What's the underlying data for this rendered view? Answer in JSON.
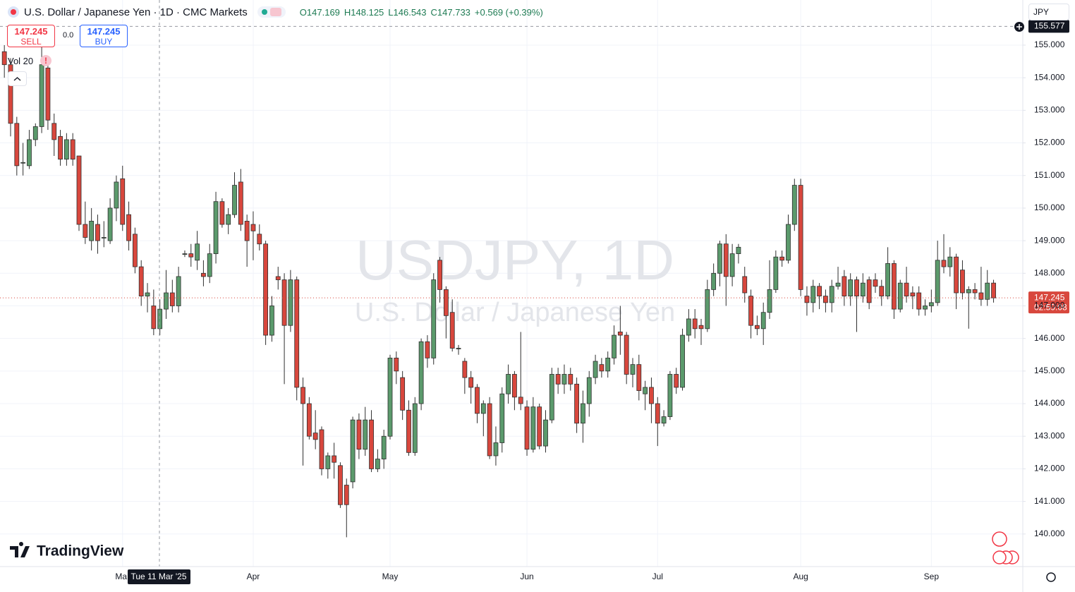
{
  "header": {
    "title": "U.S. Dollar / Japanese Yen · 1D · CMC Markets",
    "open": "O147.169",
    "high": "H148.125",
    "low": "L146.543",
    "close": "C147.733",
    "change": "+0.569 (+0.39%)"
  },
  "trade": {
    "sell_price": "147.245",
    "sell": "SELL",
    "spread": "0.0",
    "buy_price": "147.245",
    "buy": "BUY"
  },
  "volume_label": "Vol 20",
  "currency": "JPY",
  "watermark": {
    "symbol": "USDJPY, 1D",
    "name": "U.S. Dollar / Japanese Yen"
  },
  "logo": "TradingView",
  "crosshair": {
    "price": 155.577,
    "date": "Tue 11 Mar '25"
  },
  "chart_data": {
    "type": "candlestick",
    "open": [
      154.8,
      154.4,
      152.6,
      151.4,
      151.3,
      152.1,
      152.5,
      154.3,
      152.6,
      152.2,
      151.5,
      152.1,
      151.6,
      149.5,
      149.0,
      149.5,
      149.1,
      149.0,
      150.0,
      150.9,
      149.8,
      149.2,
      148.2,
      147.3,
      147.0,
      146.3,
      146.9,
      147.4,
      147.0,
      148.6,
      148.6,
      148.4,
      148.0,
      147.9,
      148.6,
      150.2,
      149.5,
      149.8,
      150.8,
      149.6,
      149.5,
      149.2,
      148.9,
      146.1,
      147.9,
      147.8,
      146.4,
      147.8,
      144.5,
      144.0,
      143.1,
      143.2,
      142.0,
      142.4,
      142.1,
      141.5,
      141.6,
      143.5,
      142.6,
      143.5,
      142.0,
      142.3,
      143.0,
      145.4,
      144.8,
      143.8,
      142.5,
      144.0,
      145.9,
      145.4,
      148.4,
      147.5,
      146.8,
      145.7,
      145.3,
      144.8,
      144.5,
      143.7,
      144.0,
      142.4,
      142.8,
      144.3,
      144.9,
      144.2,
      143.9,
      142.6,
      143.9,
      142.7,
      143.5,
      144.9,
      144.6,
      144.9,
      144.6,
      143.4,
      144.0,
      144.8,
      145.2,
      145.0,
      145.4,
      146.2,
      146.1,
      144.9,
      145.2,
      144.3,
      144.5,
      144.0,
      143.4,
      143.6,
      144.9,
      144.5,
      146.1,
      146.6,
      146.4,
      146.3,
      147.5,
      148.0,
      148.9,
      147.9,
      148.6,
      147.9,
      147.3,
      146.4,
      146.3,
      146.8,
      147.5,
      148.5,
      148.4,
      149.5,
      150.7,
      147.3,
      147.1,
      147.6,
      147.3,
      147.1,
      147.6,
      147.9,
      147.3,
      147.8,
      147.3,
      147.8,
      147.8,
      147.6,
      147.3,
      148.3,
      146.9,
      147.7,
      147.4,
      147.4,
      146.9,
      147.0,
      147.1,
      148.4,
      148.2,
      148.5,
      148.1,
      147.4,
      147.5,
      147.4,
      147.2,
      147.7
    ],
    "high": [
      155.0,
      154.6,
      152.8,
      152.0,
      152.4,
      152.6,
      155.1,
      154.5,
      152.9,
      152.4,
      152.3,
      152.3,
      151.6,
      150.2,
      150.0,
      149.8,
      149.6,
      150.3,
      151.0,
      151.3,
      150.2,
      149.4,
      148.4,
      147.7,
      147.5,
      147.2,
      148.1,
      147.8,
      148.2,
      148.7,
      148.9,
      149.3,
      148.4,
      148.9,
      150.5,
      150.3,
      150.0,
      151.1,
      151.2,
      149.8,
      149.9,
      149.5,
      149.0,
      147.3,
      148.2,
      148.0,
      148.1,
      147.9,
      144.8,
      144.2,
      143.8,
      143.3,
      142.5,
      142.8,
      142.2,
      141.7,
      143.6,
      143.7,
      143.9,
      143.8,
      142.6,
      143.2,
      145.5,
      145.6,
      145.0,
      144.1,
      144.2,
      146.0,
      146.1,
      148.0,
      148.5,
      147.6,
      147.2,
      145.8,
      145.4,
      145.0,
      144.6,
      144.1,
      144.2,
      143.3,
      144.5,
      145.2,
      145.0,
      146.2,
      144.1,
      144.2,
      144.0,
      143.8,
      145.1,
      145.1,
      145.2,
      145.1,
      144.8,
      144.4,
      145.0,
      145.5,
      145.4,
      145.6,
      146.4,
      147.0,
      146.2,
      145.4,
      145.5,
      144.7,
      144.8,
      144.2,
      143.8,
      145.0,
      145.1,
      146.3,
      146.9,
      146.9,
      146.6,
      147.8,
      148.3,
      149.0,
      149.2,
      148.9,
      148.9,
      148.2,
      147.5,
      146.7,
      147.1,
      148.4,
      148.7,
      148.7,
      149.8,
      150.9,
      150.9,
      147.6,
      147.8,
      147.7,
      147.5,
      147.8,
      148.2,
      148.1,
      148.0,
      147.9,
      148.0,
      147.9,
      148.0,
      147.8,
      148.8,
      148.4,
      147.8,
      148.2,
      147.6,
      147.6,
      147.2,
      147.5,
      149.0,
      149.2,
      148.8,
      148.6,
      148.4,
      147.6,
      147.7,
      148.2,
      148.1,
      147.8
    ],
    "low": [
      154.0,
      152.2,
      151.0,
      151.0,
      151.2,
      151.9,
      152.3,
      152.4,
      151.6,
      151.3,
      151.3,
      151.3,
      149.3,
      148.9,
      148.7,
      148.6,
      148.8,
      148.9,
      149.6,
      149.3,
      148.7,
      148.0,
      147.0,
      146.8,
      146.1,
      146.1,
      146.6,
      146.8,
      146.8,
      148.5,
      148.2,
      148.1,
      147.6,
      147.7,
      148.3,
      149.4,
      149.2,
      149.7,
      149.3,
      148.2,
      148.4,
      148.7,
      145.8,
      145.9,
      147.5,
      144.6,
      146.2,
      144.1,
      142.1,
      142.9,
      142.6,
      141.8,
      141.7,
      141.7,
      140.8,
      139.9,
      141.4,
      142.3,
      142.4,
      141.9,
      141.9,
      142.0,
      142.9,
      144.6,
      143.5,
      142.4,
      142.4,
      143.8,
      145.1,
      145.2,
      147.1,
      146.0,
      145.6,
      145.5,
      144.3,
      144.0,
      143.4,
      143.0,
      142.3,
      142.1,
      142.5,
      144.0,
      143.8,
      143.8,
      142.4,
      142.5,
      142.6,
      142.5,
      143.4,
      144.3,
      144.3,
      144.4,
      143.1,
      142.8,
      143.6,
      144.6,
      144.8,
      144.8,
      145.2,
      145.5,
      144.6,
      144.5,
      144.1,
      143.8,
      143.4,
      142.7,
      143.3,
      143.5,
      144.3,
      144.4,
      145.9,
      146.0,
      145.8,
      146.2,
      147.3,
      147.6,
      147.0,
      147.6,
      148.3,
      147.1,
      146.0,
      146.1,
      145.8,
      146.6,
      147.4,
      148.2,
      148.3,
      149.3,
      147.3,
      146.7,
      146.8,
      146.9,
      146.8,
      146.8,
      147.5,
      147.0,
      147.0,
      146.2,
      147.1,
      146.9,
      147.4,
      147.0,
      147.2,
      146.6,
      146.8,
      147.1,
      146.9,
      146.7,
      146.7,
      146.8,
      147.0,
      148.0,
      147.9,
      146.9,
      147.2,
      146.3,
      147.2,
      147.0,
      147.0,
      147.1
    ],
    "close": [
      154.4,
      152.6,
      151.3,
      151.4,
      152.1,
      152.5,
      154.4,
      152.7,
      152.1,
      151.5,
      152.1,
      151.5,
      149.5,
      149.1,
      149.6,
      149.0,
      149.1,
      150.0,
      150.8,
      149.5,
      149.0,
      148.2,
      147.3,
      147.4,
      146.3,
      146.9,
      147.4,
      147.0,
      147.9,
      148.6,
      148.5,
      148.9,
      147.9,
      148.6,
      150.2,
      149.5,
      149.8,
      150.7,
      149.5,
      149.0,
      149.3,
      148.9,
      146.1,
      147.0,
      147.8,
      146.4,
      147.8,
      144.5,
      144.0,
      143.0,
      142.9,
      142.0,
      142.4,
      142.2,
      140.9,
      140.9,
      143.5,
      142.6,
      143.5,
      142.0,
      142.3,
      143.0,
      145.4,
      145.0,
      143.8,
      142.5,
      144.0,
      145.9,
      145.4,
      147.8,
      147.5,
      146.7,
      145.7,
      145.7,
      144.8,
      144.5,
      143.7,
      144.0,
      142.4,
      142.8,
      144.3,
      144.9,
      144.2,
      144.0,
      142.6,
      143.9,
      142.7,
      143.5,
      144.9,
      144.6,
      144.9,
      144.6,
      143.4,
      144.0,
      144.8,
      145.3,
      145.0,
      145.4,
      146.1,
      146.1,
      144.9,
      145.2,
      144.4,
      144.5,
      144.0,
      143.4,
      143.6,
      144.9,
      144.5,
      146.1,
      146.6,
      146.3,
      146.3,
      147.5,
      148.0,
      148.9,
      147.9,
      148.6,
      148.8,
      147.4,
      146.4,
      146.3,
      146.8,
      147.5,
      148.5,
      148.4,
      149.5,
      150.7,
      147.5,
      147.1,
      147.6,
      147.3,
      147.1,
      147.6,
      147.7,
      147.3,
      147.8,
      147.3,
      147.7,
      147.1,
      147.6,
      147.3,
      148.3,
      146.9,
      147.7,
      147.3,
      147.3,
      146.9,
      147.0,
      147.1,
      148.4,
      148.2,
      148.5,
      147.4,
      147.4,
      147.5,
      147.4,
      147.2,
      147.7,
      147.245
    ],
    "xlim": [
      -0.7,
      163.7
    ],
    "xticks": [
      {
        "value": 19,
        "label": "Mar"
      },
      {
        "value": 40,
        "label": "Apr"
      },
      {
        "value": 62,
        "label": "May"
      },
      {
        "value": 84,
        "label": "Jun"
      },
      {
        "value": 105,
        "label": "Jul"
      },
      {
        "value": 128,
        "label": "Aug"
      },
      {
        "value": 149,
        "label": "Sep"
      }
    ],
    "ylim": [
      139.0,
      156.385
    ],
    "yticks": [
      {
        "value": 140,
        "label": "140.000"
      },
      {
        "value": 141,
        "label": "141.000"
      },
      {
        "value": 142,
        "label": "142.000"
      },
      {
        "value": 143,
        "label": "143.000"
      },
      {
        "value": 144,
        "label": "144.000"
      },
      {
        "value": 145,
        "label": "145.000"
      },
      {
        "value": 146,
        "label": "146.000"
      },
      {
        "value": 147,
        "label": "147.000"
      },
      {
        "value": 148,
        "label": "148.000"
      },
      {
        "value": 149,
        "label": "149.000"
      },
      {
        "value": 150,
        "label": "150.000"
      },
      {
        "value": 151,
        "label": "151.000"
      },
      {
        "value": 152,
        "label": "152.000"
      },
      {
        "value": 153,
        "label": "153.000"
      },
      {
        "value": 154,
        "label": "154.000"
      },
      {
        "value": 155,
        "label": "155.000"
      }
    ],
    "grid": true,
    "last_price": 147.245,
    "countdown": "02:59:08",
    "up_color": "#5b9a6c",
    "down_color": "#d8473d",
    "wick_color": "#2f2f2f"
  }
}
